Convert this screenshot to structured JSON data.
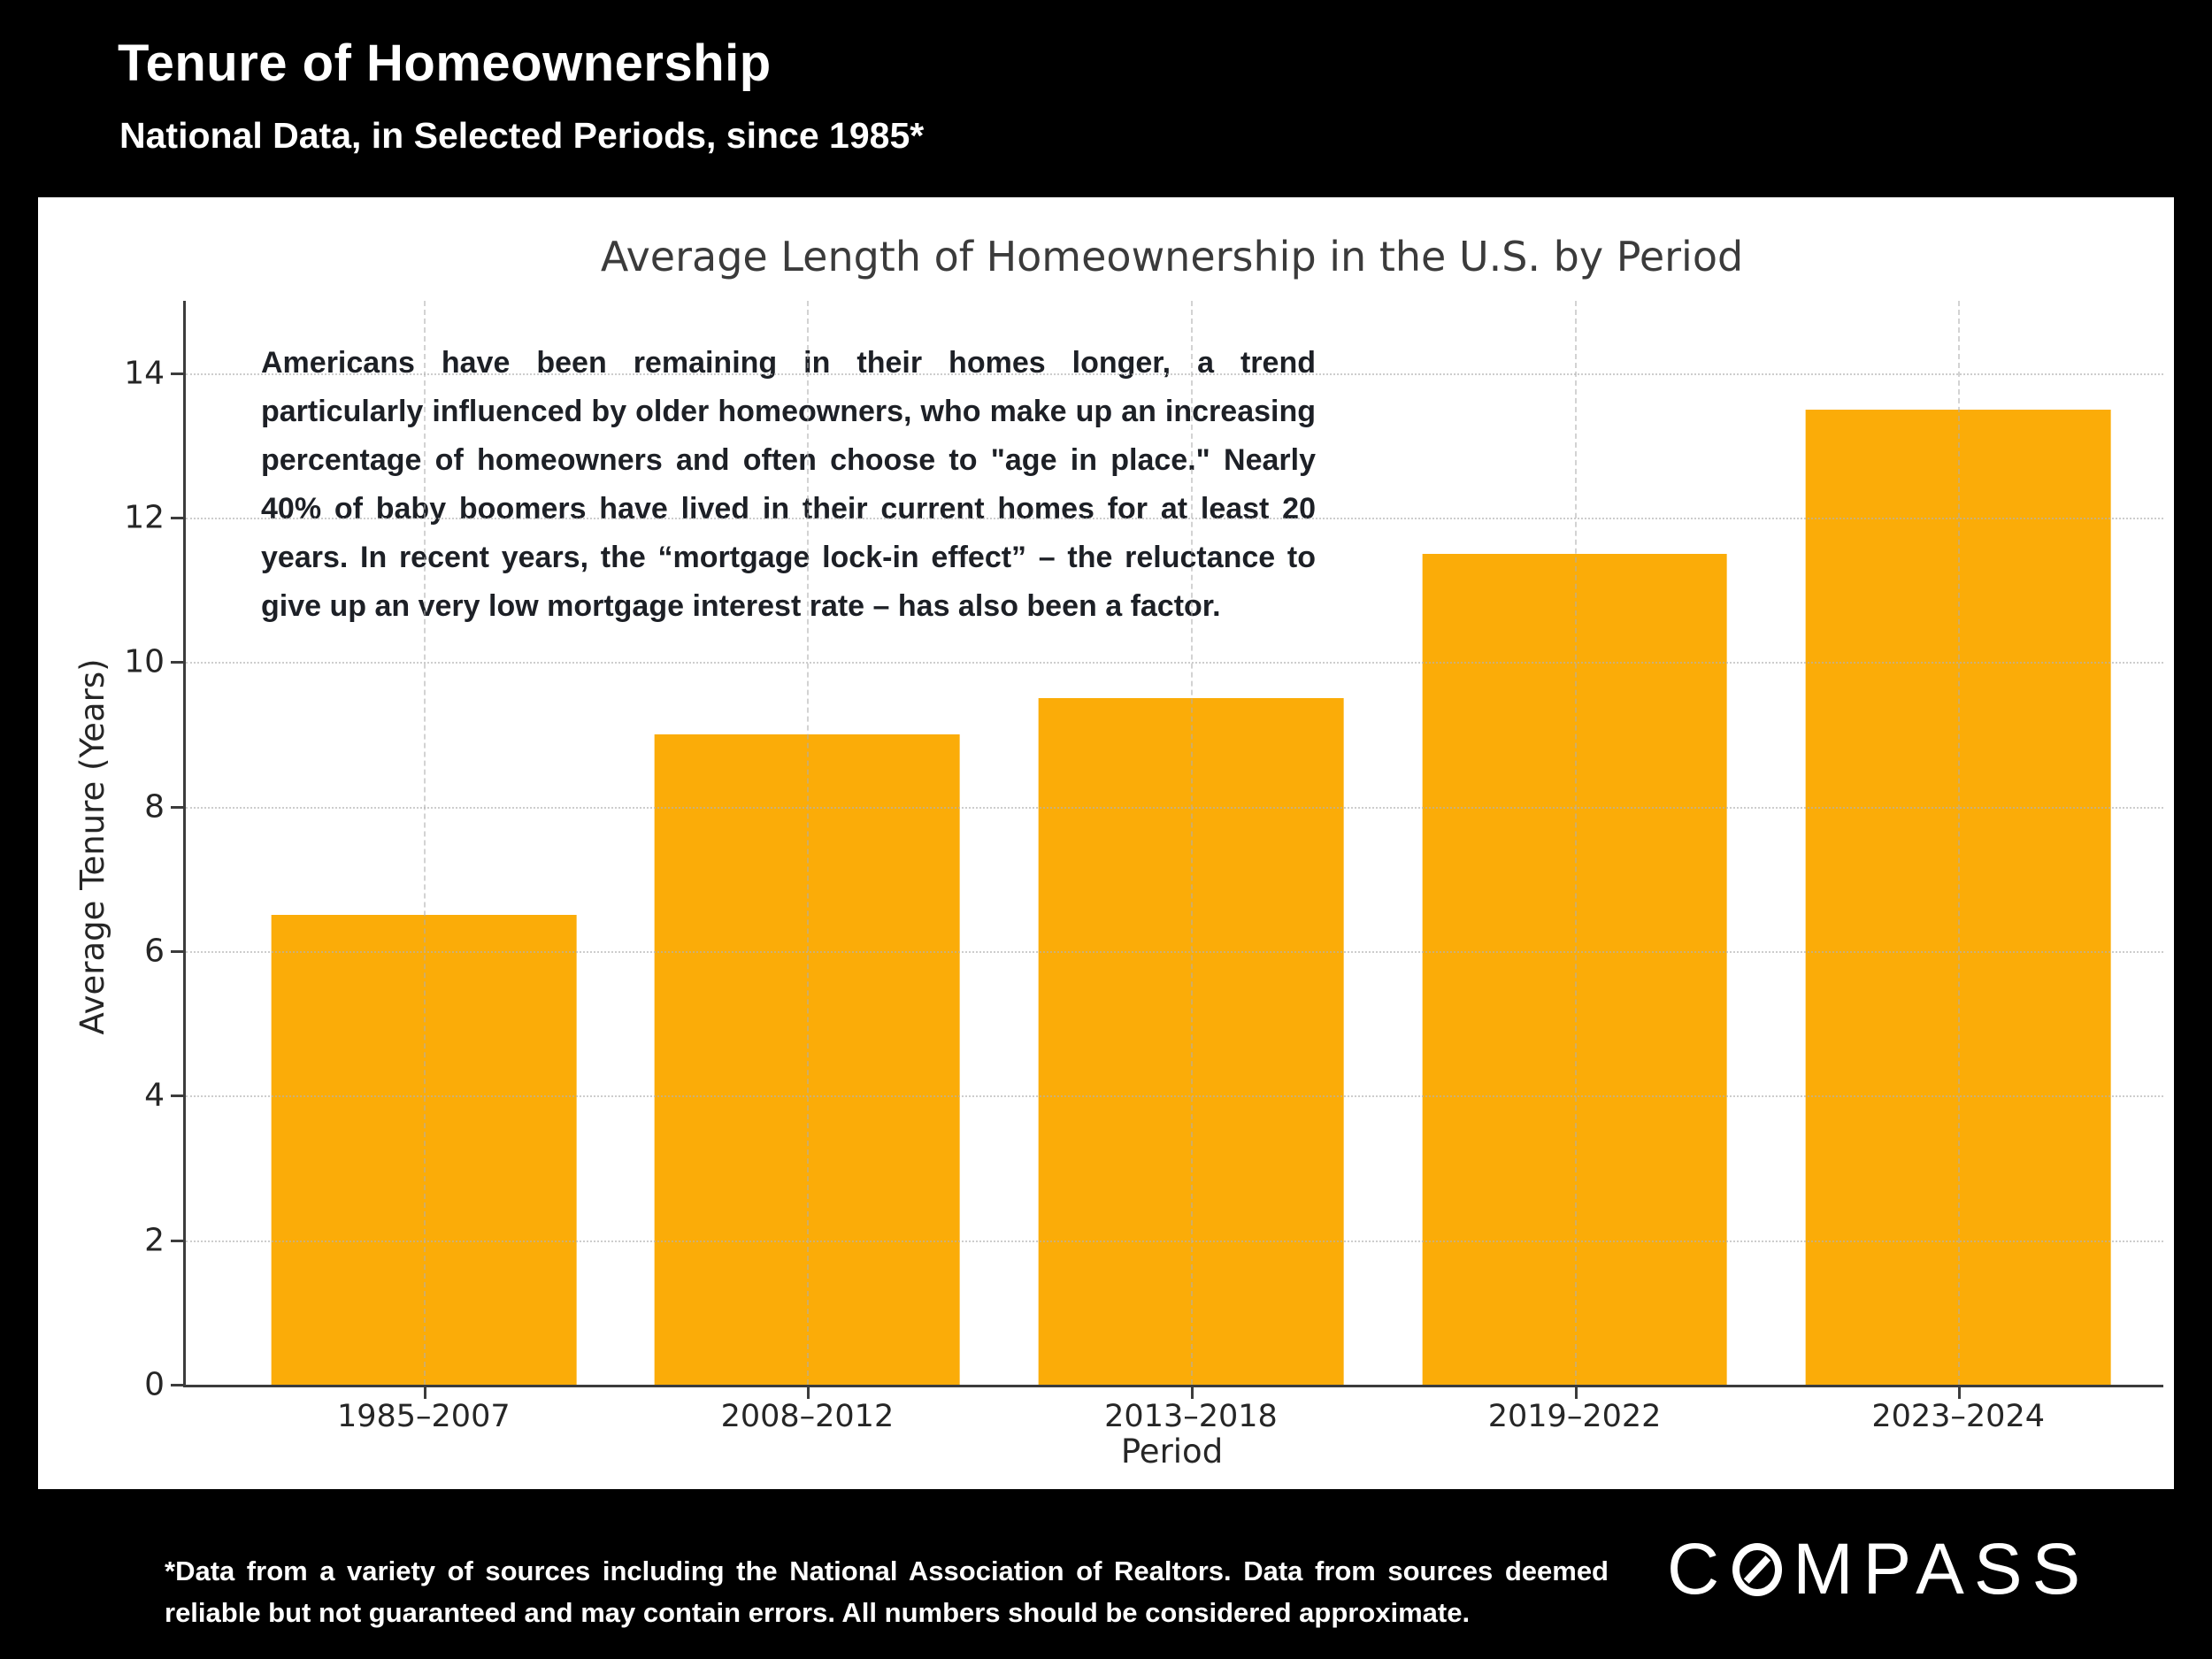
{
  "header": {
    "title": "Tenure of Homeownership",
    "subtitle": "National Data, in Selected Periods, since 1985*"
  },
  "chart": {
    "title": "Average Length of Homeownership in the U.S. by Period",
    "annotation": "Americans have been remaining in their homes longer, a trend particularly influenced by older homeowners, who make up an increasing percentage of homeowners and often choose to \"age in place.\" Nearly 40% of baby boomers have lived in their current homes for at least 20 years. In recent years, the “mortgage lock-in effect” – the reluctance to give up an very low mortgage interest rate – has also been a factor.",
    "bar_color": "#FBAC08",
    "axis_color": "#3c3c3c",
    "panel_background": "#ffffff",
    "slide_background": "#000000"
  },
  "chart_data": {
    "type": "bar",
    "title": "Average Length of Homeownership in the U.S. by Period",
    "categories": [
      "1985–2007",
      "2008–2012",
      "2013–2018",
      "2019–2022",
      "2023–2024"
    ],
    "values": [
      6.5,
      9.0,
      9.5,
      11.5,
      13.5
    ],
    "xlabel": "Period",
    "ylabel": "Average Tenure (Years)",
    "ylim": [
      0,
      15
    ],
    "yticks": [
      0,
      2,
      4,
      6,
      8,
      10,
      12,
      14
    ],
    "grid": true,
    "legend": false,
    "bar_color": "#FBAC08"
  },
  "footer": {
    "disclaimer": "*Data from a variety of sources including the National Association of Realtors. Data from sources deemed reliable but not guaranteed and may contain errors. All numbers should be considered approximate.",
    "logo_text": "COMPASS",
    "logo_prefix": "C",
    "logo_suffix": "MPASS"
  }
}
